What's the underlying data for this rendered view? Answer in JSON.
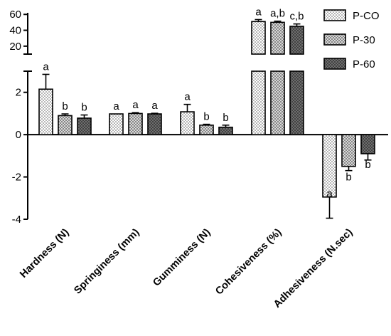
{
  "chart_data": {
    "type": "bar",
    "categories": [
      "Hardness (N)",
      "Springiness (mm)",
      "Gumminess (N)",
      "Cohesiveness (%)",
      "Adhesiveness (N.sec)"
    ],
    "series": [
      {
        "name": "P-CO",
        "pattern": "dots-light",
        "values": [
          2.15,
          0.98,
          1.08,
          51,
          -2.95
        ],
        "errors": [
          0.7,
          0.0,
          0.35,
          2.5,
          1.0
        ],
        "labels": [
          "a",
          "a",
          "a",
          "a",
          "a"
        ]
      },
      {
        "name": "P-30",
        "pattern": "dots-medium",
        "values": [
          0.9,
          1.0,
          0.45,
          50,
          -1.5
        ],
        "errors": [
          0.08,
          0.04,
          0.04,
          1.5,
          0.2
        ],
        "labels": [
          "b",
          "a",
          "b",
          "a,b",
          "b"
        ]
      },
      {
        "name": "P-60",
        "pattern": "dots-dark",
        "values": [
          0.78,
          0.98,
          0.35,
          45,
          -0.9
        ],
        "errors": [
          0.15,
          0.03,
          0.1,
          3.0,
          0.3
        ],
        "labels": [
          "b",
          "a",
          "b",
          "c,b",
          "b"
        ]
      }
    ],
    "y_axis_lower": {
      "ylim": [
        -4,
        3
      ],
      "ticks": [
        -4,
        -2,
        0,
        2
      ]
    },
    "y_axis_upper": {
      "ylim": [
        10,
        62
      ],
      "ticks": [
        20,
        40,
        60
      ]
    },
    "grid": false,
    "legend_position": "top-right"
  }
}
